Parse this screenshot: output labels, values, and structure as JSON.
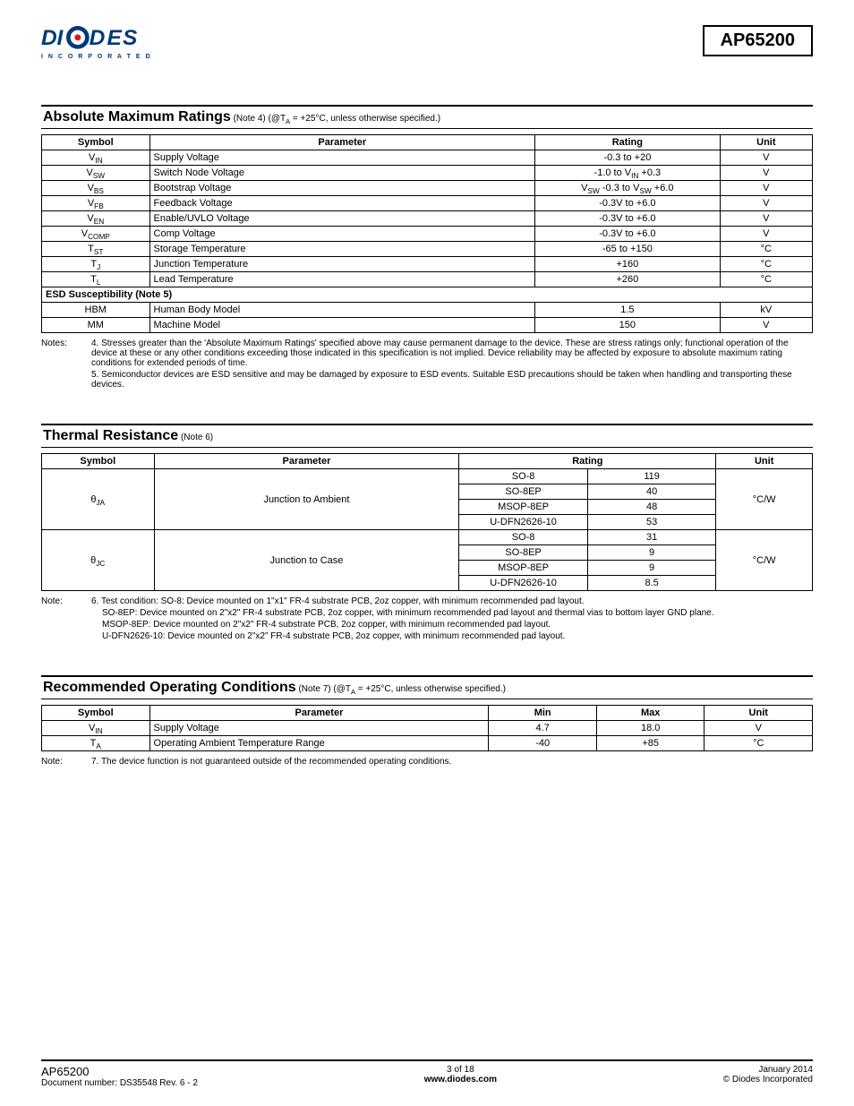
{
  "header": {
    "part_number": "AP65200",
    "logo_tagline": "I N C O R P O R A T E D",
    "logo_colors": {
      "primary": "#003a7a",
      "accent": "#d7182a"
    }
  },
  "section1": {
    "title": "Absolute Maximum Ratings",
    "subtitle": " (Note 4) (@TA = +25°C, unless otherwise specified.)",
    "columns": [
      "Symbol",
      "Parameter",
      "Rating",
      "Unit"
    ],
    "rows": [
      {
        "symbol_main": "V",
        "symbol_sub": "IN",
        "parameter": "Supply Voltage",
        "rating": "-0.3 to +20",
        "unit": "V"
      },
      {
        "symbol_main": "V",
        "symbol_sub": "SW",
        "parameter": "Switch Node Voltage",
        "rating_html": "-1.0 to V<sub>IN</sub> +0.3",
        "unit": "V"
      },
      {
        "symbol_main": "V",
        "symbol_sub": "BS",
        "parameter": "Bootstrap Voltage",
        "rating_html": "V<sub>SW</sub> -0.3 to V<sub>SW</sub> +6.0",
        "unit": "V"
      },
      {
        "symbol_main": "V",
        "symbol_sub": "FB",
        "parameter": "Feedback Voltage",
        "rating": "-0.3V to +6.0",
        "unit": "V"
      },
      {
        "symbol_main": "V",
        "symbol_sub": "EN",
        "parameter": "Enable/UVLO Voltage",
        "rating": "-0.3V to +6.0",
        "unit": "V"
      },
      {
        "symbol_main": "V",
        "symbol_sub": "COMP",
        "parameter": "Comp Voltage",
        "rating": "-0.3V to +6.0",
        "unit": "V"
      },
      {
        "symbol_main": "T",
        "symbol_sub": "ST",
        "parameter": "Storage Temperature",
        "rating": "-65 to +150",
        "unit": "°C"
      },
      {
        "symbol_main": "T",
        "symbol_sub": "J",
        "parameter": "Junction Temperature",
        "rating": "+160",
        "unit": "°C"
      },
      {
        "symbol_main": "T",
        "symbol_sub": "L",
        "parameter": "Lead Temperature",
        "rating": "+260",
        "unit": "°C"
      }
    ],
    "esd_header": "ESD Susceptibility  (Note 5)",
    "esd_rows": [
      {
        "symbol": "HBM",
        "parameter": "Human Body Model",
        "rating": "1.5",
        "unit": "kV"
      },
      {
        "symbol": "MM",
        "parameter": "Machine Model",
        "rating": "150",
        "unit": "V"
      }
    ],
    "notes_label": "Notes:",
    "notes": [
      "4. Stresses greater than the 'Absolute Maximum Ratings' specified above may cause permanent damage to the device. These are stress ratings only; functional operation of the device at these or any other conditions exceeding those indicated in this specification is not implied. Device reliability may be affected by exposure to absolute maximum rating conditions for extended periods of time.",
      "5. Semiconductor devices are ESD sensitive and may be damaged by exposure to ESD events. Suitable ESD precautions should be taken when handling and transporting these devices."
    ]
  },
  "section2": {
    "title": "Thermal Resistance",
    "subtitle": " (Note 6)",
    "columns": [
      "Symbol",
      "Parameter",
      "Rating",
      "Unit"
    ],
    "groups": [
      {
        "symbol_main": "θ",
        "symbol_sub": "JA",
        "parameter": "Junction to Ambient",
        "unit": "°C/W",
        "rows": [
          {
            "pkg": "SO-8",
            "val": "119"
          },
          {
            "pkg": "SO-8EP",
            "val": "40"
          },
          {
            "pkg": "MSOP-8EP",
            "val": "48"
          },
          {
            "pkg": "U-DFN2626-10",
            "val": "53"
          }
        ]
      },
      {
        "symbol_main": "θ",
        "symbol_sub": "JC",
        "parameter": "Junction to Case",
        "unit": "°C/W",
        "rows": [
          {
            "pkg": "SO-8",
            "val": "31"
          },
          {
            "pkg": "SO-8EP",
            "val": "9"
          },
          {
            "pkg": "MSOP-8EP",
            "val": "9"
          },
          {
            "pkg": "U-DFN2626-10",
            "val": "8.5"
          }
        ]
      }
    ],
    "notes_label": "Note:",
    "notes": [
      "6. Test condition: SO-8: Device mounted on 1\"x1\" FR-4 substrate PCB, 2oz copper, with minimum recommended pad layout.",
      "SO-8EP: Device mounted on 2\"x2\" FR-4 substrate PCB, 2oz copper, with minimum recommended pad layout and thermal vias to bottom layer GND plane.",
      "MSOP-8EP: Device mounted on 2\"x2\" FR-4 substrate PCB, 2oz copper, with minimum recommended pad layout.",
      "U-DFN2626-10: Device mounted on 2\"x2\" FR-4 substrate PCB, 2oz copper, with minimum recommended pad layout."
    ]
  },
  "section3": {
    "title": "Recommended Operating Conditions",
    "subtitle": " (Note 7) (@TA = +25°C, unless otherwise specified.)",
    "columns": [
      "Symbol",
      "Parameter",
      "Min",
      "Max",
      "Unit"
    ],
    "rows": [
      {
        "symbol_main": "V",
        "symbol_sub": "IN",
        "parameter": "Supply Voltage",
        "min": "4.7",
        "max": "18.0",
        "unit": "V"
      },
      {
        "symbol_main": "T",
        "symbol_sub": "A",
        "parameter": "Operating Ambient Temperature Range",
        "min": "-40",
        "max": "+85",
        "unit": "°C"
      }
    ],
    "notes_label": "Note:",
    "notes": [
      "7. The device function is not guaranteed outside of the recommended operating conditions."
    ]
  },
  "footer": {
    "part": "AP65200",
    "doc": "Document number: DS35548 Rev. 6 - 2",
    "page": "3 of 18",
    "url": "www.diodes.com",
    "date": "January 2014",
    "copyright": "© Diodes Incorporated"
  }
}
